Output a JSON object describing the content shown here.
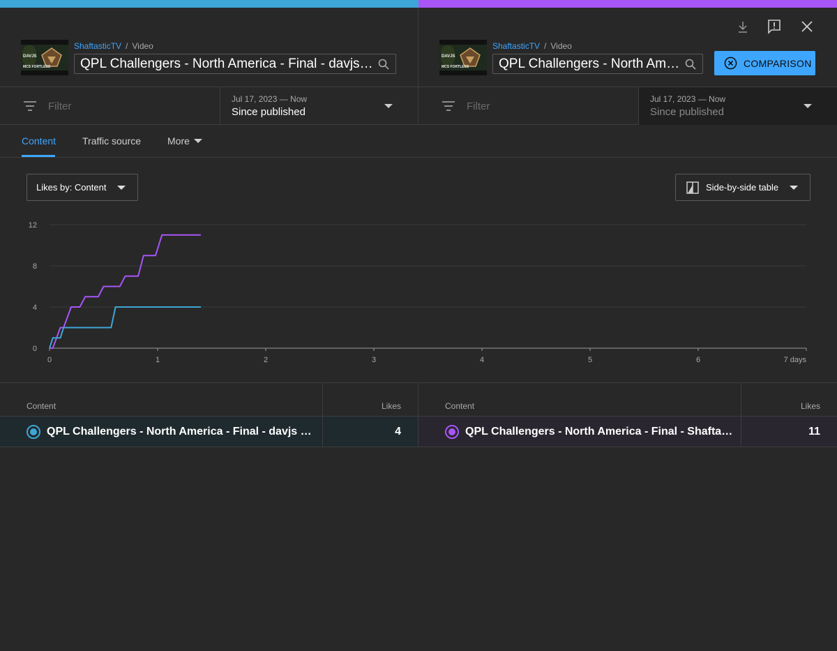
{
  "colors": {
    "left_accent": "#3ea6d6",
    "right_accent": "#a855f7",
    "link": "#3ea6ff",
    "background": "#282828"
  },
  "left": {
    "channel": "ShaftasticTV",
    "crumb_type": "Video",
    "title": "QPL Challengers - North America - Final - davjs v/s MCS Fortless",
    "filter_placeholder": "Filter",
    "date_range": "Jul 17, 2023 — Now",
    "date_label": "Since published",
    "thumbnail_text": {
      "name1": "DAVJS",
      "name2": "MCS FORTLESS"
    }
  },
  "right": {
    "channel": "ShaftasticTV",
    "crumb_type": "Video",
    "title": "QPL Challengers - North America - Final - Shaftastic",
    "filter_placeholder": "Filter",
    "date_range": "Jul 17, 2023 — Now",
    "date_label": "Since published",
    "thumbnail_text": {
      "name1": "DAVJS",
      "name2": "MCS FORTLESS"
    }
  },
  "toolbar": {
    "comparison_label": "COMPARISON",
    "icons": [
      "download-icon",
      "feedback-icon",
      "close-icon",
      "search-icon",
      "filter-icon",
      "cancel-circle-icon",
      "table-icon"
    ]
  },
  "tabs": [
    {
      "label": "Content",
      "active": true
    },
    {
      "label": "Traffic source",
      "active": false
    },
    {
      "label": "More",
      "active": false
    }
  ],
  "metric_select": {
    "value": "Likes by: Content"
  },
  "view_select": {
    "value": "Side-by-side table"
  },
  "chart_data": {
    "type": "line",
    "x_unit_label": "days",
    "xlim": [
      0,
      7
    ],
    "ylim": [
      0,
      12
    ],
    "x_ticks": [
      "0",
      "1",
      "2",
      "3",
      "4",
      "5",
      "6",
      "7 days"
    ],
    "y_ticks": [
      "0",
      "4",
      "8",
      "12"
    ],
    "grid": true,
    "series": [
      {
        "color": "#a855f7",
        "points": [
          [
            0,
            0
          ],
          [
            0.03,
            0
          ],
          [
            0.1,
            2
          ],
          [
            0.13,
            2
          ],
          [
            0.2,
            4
          ],
          [
            0.28,
            4
          ],
          [
            0.33,
            5
          ],
          [
            0.45,
            5
          ],
          [
            0.5,
            6
          ],
          [
            0.65,
            6
          ],
          [
            0.7,
            7
          ],
          [
            0.82,
            7
          ],
          [
            0.87,
            9
          ],
          [
            0.98,
            9
          ],
          [
            1.04,
            11
          ],
          [
            1.4,
            11
          ]
        ]
      },
      {
        "color": "#3ea6d6",
        "points": [
          [
            0,
            0
          ],
          [
            0.03,
            1
          ],
          [
            0.1,
            1
          ],
          [
            0.13,
            2
          ],
          [
            0.57,
            2
          ],
          [
            0.61,
            4
          ],
          [
            1.4,
            4
          ]
        ]
      }
    ]
  },
  "table": {
    "left": {
      "col_content": "Content",
      "col_likes": "Likes",
      "row_title": "QPL Challengers - North America - Final - davjs v/s MCS Fortless",
      "row_likes": "4"
    },
    "right": {
      "col_content": "Content",
      "col_likes": "Likes",
      "row_title": "QPL Challengers - North America - Final - Shaftastic",
      "row_likes": "11"
    }
  }
}
